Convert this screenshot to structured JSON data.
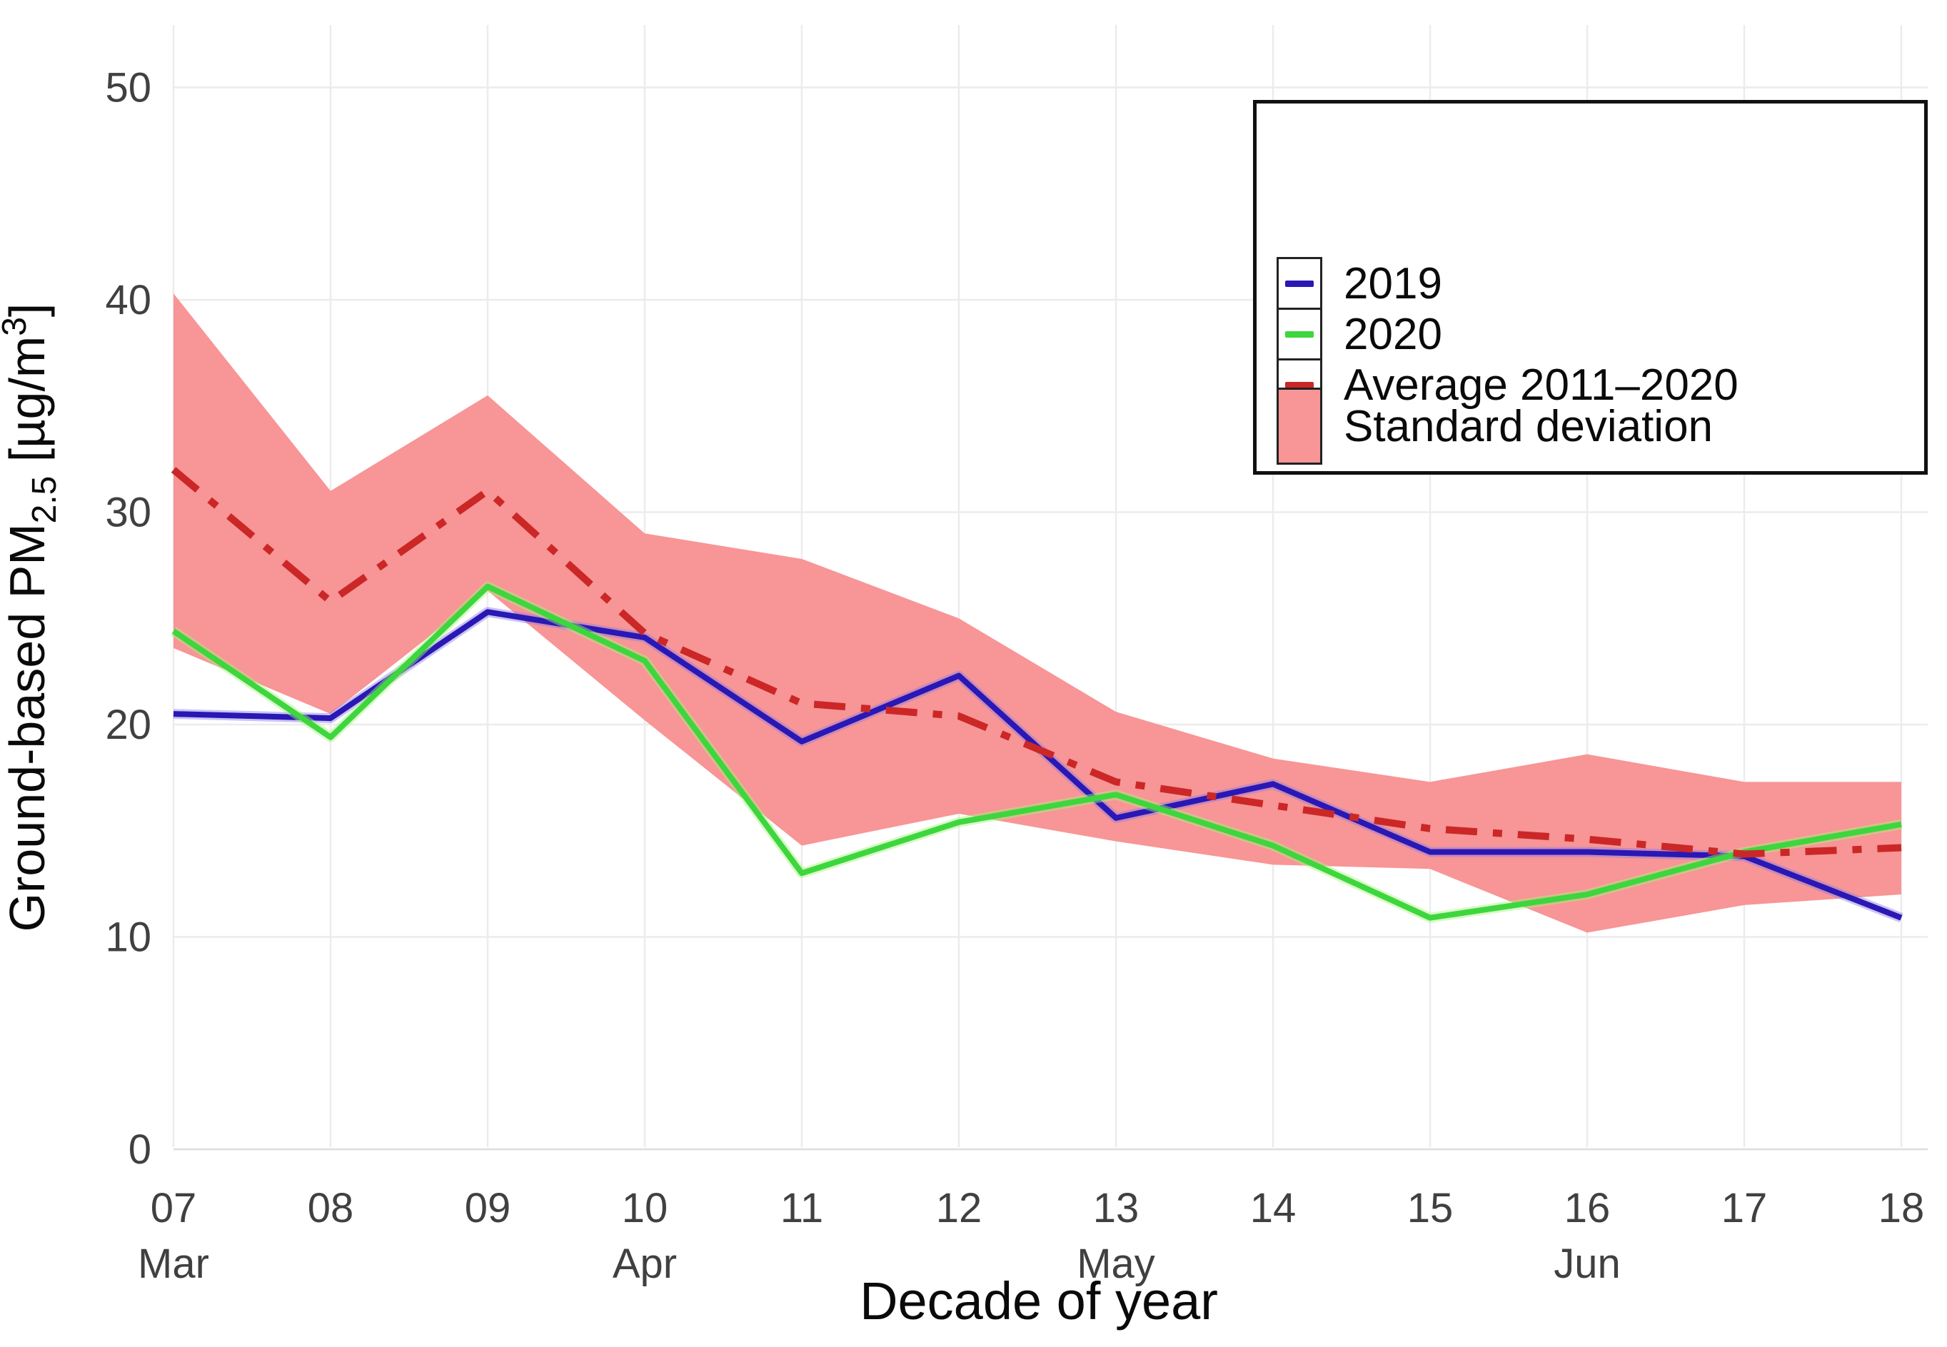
{
  "chart_data": {
    "type": "line",
    "title": "",
    "xlabel": "Decade of year",
    "ylabel": "Ground-based PM2.5 [µg/m³]",
    "ylabel_parts": {
      "main": "Ground-based PM",
      "sub": "2.5",
      "mid": " [µg/m",
      "sup": "3",
      "end": "]"
    },
    "x_ticks": [
      "07",
      "08",
      "09",
      "10",
      "11",
      "12",
      "13",
      "14",
      "15",
      "16",
      "17",
      "18"
    ],
    "month_labels": [
      {
        "tick_index": 0,
        "label": "Mar"
      },
      {
        "tick_index": 3,
        "label": "Apr"
      },
      {
        "tick_index": 6,
        "label": "May"
      },
      {
        "tick_index": 9,
        "label": "Jun"
      }
    ],
    "y_ticks": [
      0,
      10,
      20,
      30,
      40,
      50
    ],
    "ylim": [
      0,
      50
    ],
    "grid": true,
    "legend_position": "top-right",
    "series": [
      {
        "name": "2019",
        "type": "line",
        "style": "solid",
        "color": "#2a18b4",
        "halo": "#8c7ae6",
        "values": [
          20.5,
          20.3,
          25.3,
          24.1,
          19.2,
          22.3,
          15.6,
          17.2,
          14.0,
          14.0,
          13.8,
          10.9
        ]
      },
      {
        "name": "2020",
        "type": "line",
        "style": "solid",
        "color": "#3ed63e",
        "halo": "#a8f57f",
        "values": [
          24.4,
          19.4,
          26.5,
          23.0,
          13.0,
          15.4,
          16.7,
          14.3,
          10.9,
          12.0,
          14.0,
          15.3
        ]
      },
      {
        "name": "Average 2011–2020",
        "type": "line",
        "style": "dashdot",
        "color": "#cb2727",
        "halo": "",
        "values": [
          32.0,
          25.8,
          31.0,
          24.3,
          21.0,
          20.4,
          17.3,
          16.2,
          15.1,
          14.6,
          13.9,
          14.2
        ]
      },
      {
        "name": "Standard deviation",
        "type": "band",
        "color": "#f89596",
        "upper": [
          40.3,
          31.0,
          35.5,
          29.0,
          27.8,
          25.0,
          20.6,
          18.4,
          17.3,
          18.6,
          17.3,
          17.3
        ],
        "lower": [
          23.6,
          20.5,
          26.3,
          20.2,
          14.3,
          15.8,
          14.5,
          13.4,
          13.2,
          10.2,
          11.5,
          12.0
        ]
      }
    ],
    "colors": {
      "grid": "#ececec",
      "baseline": "#dddddd",
      "axis_text": "#404040",
      "title_text": "#0a0a0a",
      "background": "#ffffff",
      "legend_border": "#111111"
    }
  }
}
